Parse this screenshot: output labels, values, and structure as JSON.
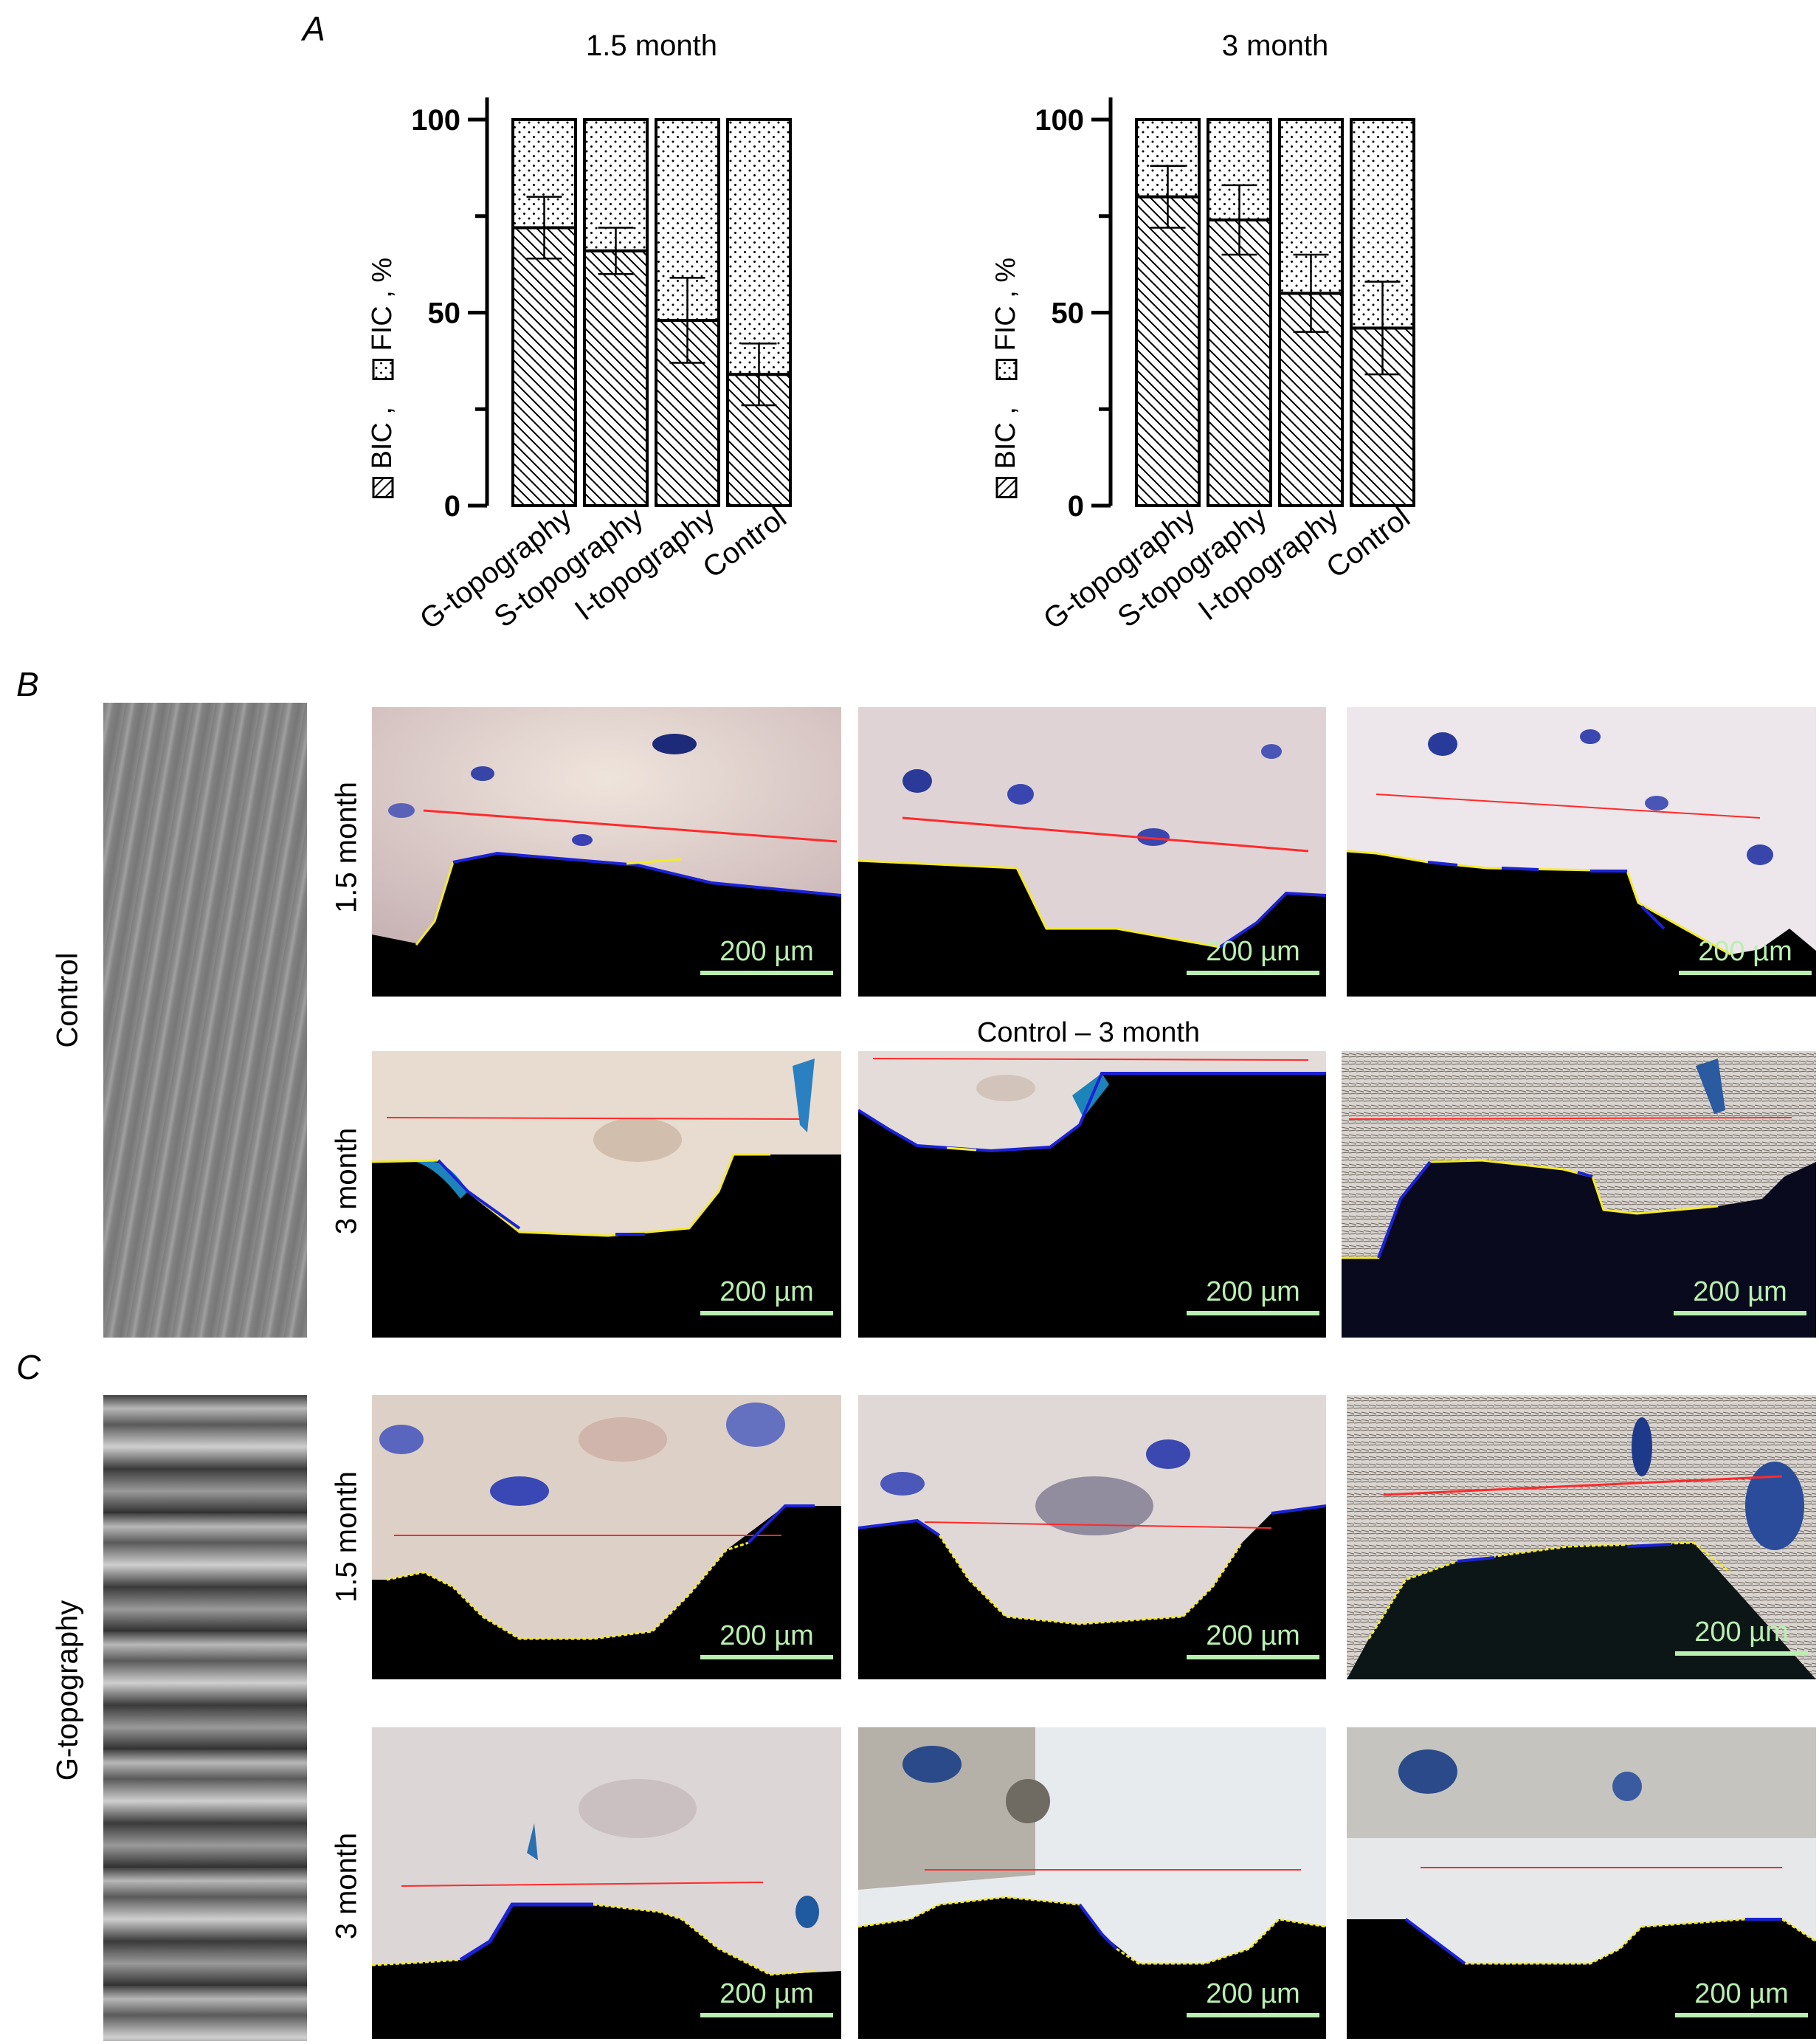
{
  "panels": {
    "a": {
      "letter": "A"
    },
    "b": {
      "letter": "B",
      "group_label": "Control",
      "middle_caption": "Control – 3 month"
    },
    "c": {
      "letter": "C",
      "group_label": "G-topography"
    }
  },
  "row_labels": {
    "m15": "1.5 month",
    "m3": "3 month"
  },
  "scale_bar_label": "200 µm",
  "colors": {
    "bic_line": "#ff2a2a",
    "fic_trace": "#f4ea2a",
    "bic_trace": "#1a22d6",
    "scale_bar": "#b9efb0"
  },
  "chart_data": [
    {
      "type": "bar",
      "stacked": true,
      "title": "1.5 month",
      "ylabel_parts": [
        "BIC ,",
        "FIC , %"
      ],
      "categories": [
        "G-topography",
        "S-topography",
        "I-topography",
        "Control"
      ],
      "series": [
        {
          "name": "BIC",
          "values": [
            72,
            66,
            48,
            34
          ],
          "error": [
            8,
            6,
            11,
            8
          ]
        },
        {
          "name": "FIC",
          "values": [
            28,
            34,
            52,
            66
          ]
        }
      ],
      "ylim": [
        0,
        100
      ],
      "yticks": [
        "0",
        "50",
        "100"
      ]
    },
    {
      "type": "bar",
      "stacked": true,
      "title": "3 month",
      "ylabel_parts": [
        "BIC ,",
        "FIC , %"
      ],
      "categories": [
        "G-topography",
        "S-topography",
        "I-topography",
        "Control"
      ],
      "series": [
        {
          "name": "BIC",
          "values": [
            80,
            74,
            55,
            46
          ],
          "error": [
            8,
            9,
            10,
            12
          ]
        },
        {
          "name": "FIC",
          "values": [
            20,
            26,
            45,
            54
          ]
        }
      ],
      "ylim": [
        0,
        100
      ],
      "yticks": [
        "0",
        "50",
        "100"
      ]
    }
  ]
}
